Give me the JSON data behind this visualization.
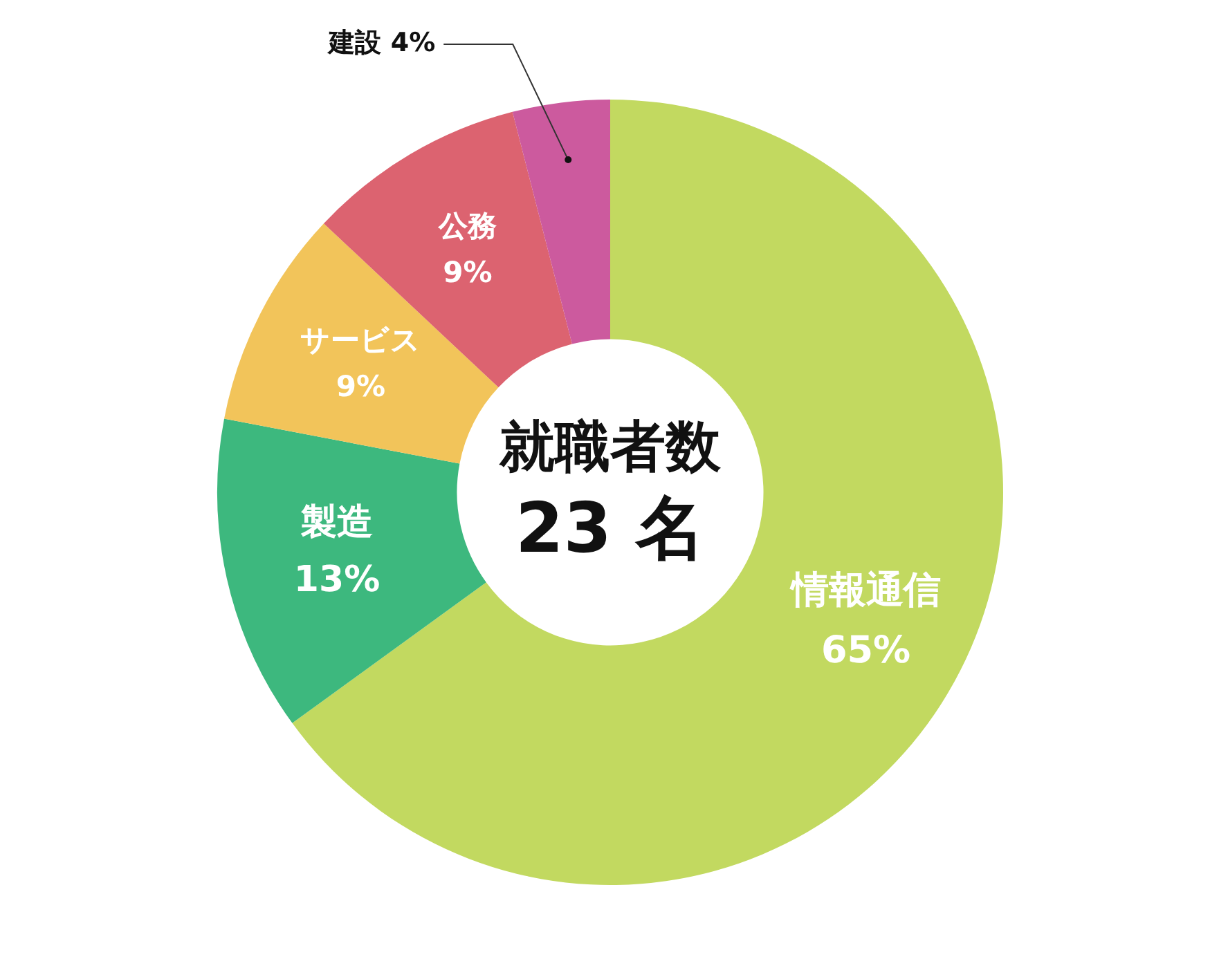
{
  "chart_data": {
    "type": "donut",
    "title": "就職者数",
    "annotations": [
      "23 名"
    ],
    "categories": [
      "情報通信",
      "製造",
      "サービス",
      "公務",
      "建設"
    ],
    "values": [
      65,
      13,
      9,
      9,
      4
    ],
    "value_labels": [
      "65%",
      "13%",
      "9%",
      "9%",
      "4%"
    ],
    "colors": [
      "#c2d960",
      "#3db87e",
      "#f2c45a",
      "#dc6370",
      "#cc5a9e"
    ]
  }
}
